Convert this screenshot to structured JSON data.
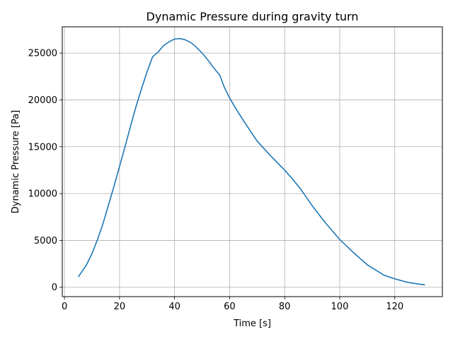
{
  "chart_data": {
    "type": "line",
    "title": "Dynamic Pressure during gravity turn",
    "xlabel": "Time [s]",
    "ylabel": "Dynamic Pressure [Pa]",
    "xlim": [
      -0.8,
      137.3
    ],
    "ylim": [
      -1000,
      27800
    ],
    "xticks": [
      0,
      20,
      40,
      60,
      80,
      100,
      120
    ],
    "yticks": [
      0,
      5000,
      10000,
      15000,
      20000,
      25000
    ],
    "grid": true,
    "legend": "none",
    "series": [
      {
        "color": "#1f77b4",
        "x": [
          5,
          8,
          10,
          12,
          14,
          16,
          18,
          20,
          22,
          24,
          26,
          28,
          30,
          32,
          34,
          36,
          37,
          38,
          40,
          42,
          44,
          46,
          48,
          50,
          52,
          54,
          56.5,
          58,
          60,
          62,
          65,
          70,
          75,
          80,
          83,
          86,
          90,
          95,
          100,
          105,
          110,
          116,
          120,
          125,
          131
        ],
        "values": [
          1100,
          2400,
          3600,
          5100,
          6800,
          8800,
          10800,
          12900,
          15000,
          17200,
          19300,
          21200,
          23000,
          24600,
          25100,
          25800,
          26000,
          26200,
          26500,
          26550,
          26400,
          26100,
          25600,
          25000,
          24300,
          23500,
          22600,
          21400,
          20200,
          19200,
          17800,
          15600,
          14000,
          12500,
          11500,
          10400,
          8700,
          6800,
          5100,
          3700,
          2400,
          1300,
          900,
          500,
          250
        ]
      }
    ]
  }
}
